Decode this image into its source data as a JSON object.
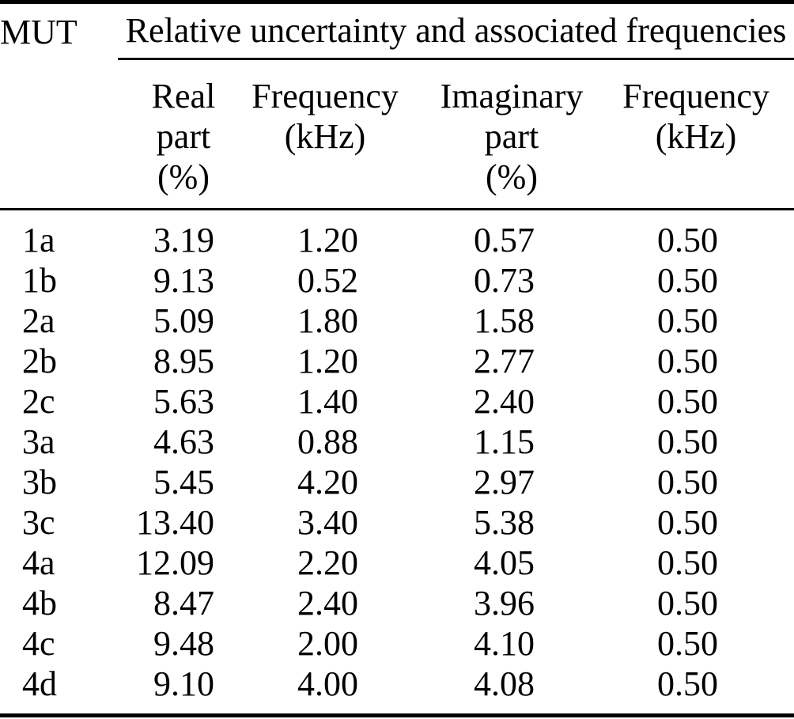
{
  "table": {
    "col1_header": "MUT",
    "span_header": "Relative uncertainty and associated frequencies",
    "sub_headers": [
      {
        "lines": [
          "Real",
          "part",
          "(%)"
        ]
      },
      {
        "lines": [
          "Frequency",
          "(kHz)",
          ""
        ]
      },
      {
        "lines": [
          "Imaginary",
          "part",
          "(%)"
        ]
      },
      {
        "lines": [
          "Frequency",
          "(kHz)",
          ""
        ]
      }
    ],
    "rows": [
      [
        "1a",
        "3.19",
        "1.20",
        "0.57",
        "0.50"
      ],
      [
        "1b",
        "9.13",
        "0.52",
        "0.73",
        "0.50"
      ],
      [
        "2a",
        "5.09",
        "1.80",
        "1.58",
        "0.50"
      ],
      [
        "2b",
        "8.95",
        "1.20",
        "2.77",
        "0.50"
      ],
      [
        "2c",
        "5.63",
        "1.40",
        "2.40",
        "0.50"
      ],
      [
        "3a",
        "4.63",
        "0.88",
        "1.15",
        "0.50"
      ],
      [
        "3b",
        "5.45",
        "4.20",
        "2.97",
        "0.50"
      ],
      [
        "3c",
        "13.40",
        "3.40",
        "5.38",
        "0.50"
      ],
      [
        "4a",
        "12.09",
        "2.20",
        "4.05",
        "0.50"
      ],
      [
        "4b",
        "8.47",
        "2.40",
        "3.96",
        "0.50"
      ],
      [
        "4c",
        "9.48",
        "2.00",
        "4.10",
        "0.50"
      ],
      [
        "4d",
        "9.10",
        "4.00",
        "4.08",
        "0.50"
      ]
    ],
    "colors": {
      "text": "#000000",
      "background": "#ffffff",
      "rule": "#000000"
    }
  }
}
